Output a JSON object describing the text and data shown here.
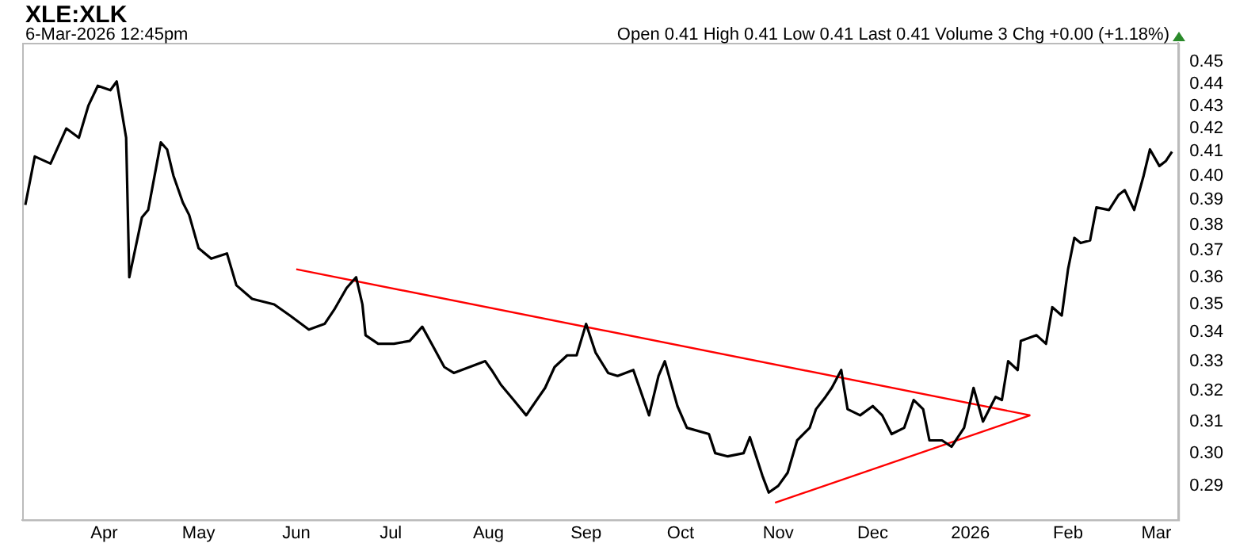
{
  "chart_data": {
    "type": "line",
    "title": "XLE:XLK",
    "subtitle": "6-Mar-2026 12:45pm",
    "annotations": [
      "Open 0.41  High 0.41  Low 0.41  Last 0.41  Volume 3  Chg +0.00 (+1.18%)"
    ],
    "series": [
      {
        "color": "#000000",
        "x": [
          "2025-03-07",
          "2025-03-10",
          "2025-03-15",
          "2025-03-20",
          "2025-03-24",
          "2025-03-27",
          "2025-03-30",
          "2025-04-03",
          "2025-04-05",
          "2025-04-08",
          "2025-04-09",
          "2025-04-13",
          "2025-04-15",
          "2025-04-19",
          "2025-04-21",
          "2025-04-23",
          "2025-04-26",
          "2025-04-28",
          "2025-05-01",
          "2025-05-05",
          "2025-05-10",
          "2025-05-13",
          "2025-05-18",
          "2025-05-25",
          "2025-05-30",
          "2025-06-05",
          "2025-06-10",
          "2025-06-13",
          "2025-06-17",
          "2025-06-20",
          "2025-06-22",
          "2025-06-23",
          "2025-06-27",
          "2025-07-02",
          "2025-07-07",
          "2025-07-11",
          "2025-07-14",
          "2025-07-18",
          "2025-07-21",
          "2025-07-26",
          "2025-07-31",
          "2025-08-02",
          "2025-08-05",
          "2025-08-09",
          "2025-08-13",
          "2025-08-15",
          "2025-08-19",
          "2025-08-22",
          "2025-08-26",
          "2025-08-29",
          "2025-09-01",
          "2025-09-04",
          "2025-09-08",
          "2025-09-11",
          "2025-09-16",
          "2025-09-21",
          "2025-09-24",
          "2025-09-26",
          "2025-09-30",
          "2025-10-03",
          "2025-10-10",
          "2025-10-12",
          "2025-10-16",
          "2025-10-21",
          "2025-10-23",
          "2025-10-25",
          "2025-10-27",
          "2025-10-29",
          "2025-11-01",
          "2025-11-04",
          "2025-11-07",
          "2025-11-11",
          "2025-11-13",
          "2025-11-16",
          "2025-11-18",
          "2025-11-21",
          "2025-11-23",
          "2025-11-27",
          "2025-12-01",
          "2025-12-04",
          "2025-12-07",
          "2025-12-11",
          "2025-12-14",
          "2025-12-17",
          "2025-12-19",
          "2025-12-23",
          "2025-12-26",
          "2025-12-30",
          "2026-01-02",
          "2026-01-05",
          "2026-01-09",
          "2026-01-11",
          "2026-01-13",
          "2026-01-16",
          "2026-01-17",
          "2026-01-22",
          "2026-01-25",
          "2026-01-27",
          "2026-01-30",
          "2026-02-01",
          "2026-02-03",
          "2026-02-05",
          "2026-02-08",
          "2026-02-10",
          "2026-02-14",
          "2026-02-17",
          "2026-02-19",
          "2026-02-22",
          "2026-02-25",
          "2026-02-27",
          "2026-03-02",
          "2026-03-04",
          "2026-03-06"
        ],
        "values": [
          0.388,
          0.408,
          0.405,
          0.42,
          0.416,
          0.43,
          0.439,
          0.437,
          0.441,
          0.416,
          0.36,
          0.383,
          0.386,
          0.414,
          0.411,
          0.4,
          0.389,
          0.384,
          0.371,
          0.367,
          0.369,
          0.357,
          0.352,
          0.35,
          0.346,
          0.341,
          0.343,
          0.348,
          0.356,
          0.36,
          0.35,
          0.339,
          0.336,
          0.336,
          0.337,
          0.342,
          0.336,
          0.328,
          0.326,
          0.328,
          0.33,
          0.327,
          0.322,
          0.317,
          0.312,
          0.315,
          0.321,
          0.328,
          0.332,
          0.332,
          0.343,
          0.333,
          0.326,
          0.325,
          0.327,
          0.312,
          0.325,
          0.33,
          0.315,
          0.308,
          0.306,
          0.3,
          0.299,
          0.3,
          0.305,
          0.299,
          0.293,
          0.288,
          0.29,
          0.294,
          0.304,
          0.308,
          0.314,
          0.318,
          0.321,
          0.327,
          0.314,
          0.312,
          0.315,
          0.312,
          0.306,
          0.308,
          0.317,
          0.314,
          0.304,
          0.304,
          0.302,
          0.308,
          0.321,
          0.31,
          0.318,
          0.317,
          0.33,
          0.327,
          0.337,
          0.339,
          0.336,
          0.349,
          0.346,
          0.363,
          0.375,
          0.373,
          0.374,
          0.387,
          0.386,
          0.392,
          0.394,
          0.386,
          0.4,
          0.411,
          0.404,
          0.406,
          0.41
        ]
      },
      {
        "color": "#ff0000",
        "x": [
          "2025-06-01",
          "2026-01-20"
        ],
        "values": [
          0.363,
          0.312
        ]
      },
      {
        "color": "#ff0000",
        "x": [
          "2025-10-31",
          "2026-01-20"
        ],
        "values": [
          0.285,
          0.312
        ]
      }
    ],
    "xlim": [
      "2025-03-06",
      "2026-03-08"
    ],
    "xticks": [
      {
        "value": "2025-04-01",
        "label": "Apr"
      },
      {
        "value": "2025-05-01",
        "label": "May"
      },
      {
        "value": "2025-06-01",
        "label": "Jun"
      },
      {
        "value": "2025-07-01",
        "label": "Jul"
      },
      {
        "value": "2025-08-01",
        "label": "Aug"
      },
      {
        "value": "2025-09-01",
        "label": "Sep"
      },
      {
        "value": "2025-10-01",
        "label": "Oct"
      },
      {
        "value": "2025-11-01",
        "label": "Nov"
      },
      {
        "value": "2025-12-01",
        "label": "Dec"
      },
      {
        "value": "2026-01-01",
        "label": "2026"
      },
      {
        "value": "2026-02-01",
        "label": "Feb"
      },
      {
        "value": "2026-03-01",
        "label": "Mar"
      }
    ],
    "ylim": [
      0.282,
      0.459
    ],
    "yticks": [
      0.29,
      {
        "value": 0.3,
        "label": "0.30"
      },
      0.31,
      0.32,
      0.33,
      0.34,
      0.35,
      0.36,
      0.37,
      0.38,
      0.39,
      {
        "value": 0.4,
        "label": "0.40"
      },
      0.41,
      0.42,
      0.43,
      0.44,
      0.45
    ],
    "log": true,
    "grid": false,
    "legend": false,
    "marker": "none",
    "line_style": "solid"
  }
}
